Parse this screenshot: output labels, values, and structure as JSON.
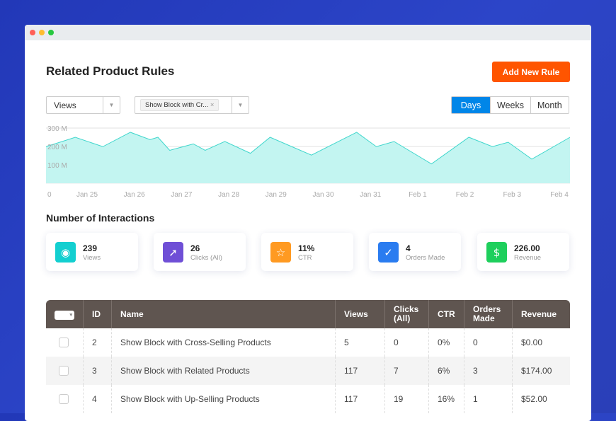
{
  "header": {
    "title": "Related Product Rules",
    "add_button": "Add New Rule"
  },
  "filters": {
    "metric": "Views",
    "rule_chip": "Show Block with Cr...",
    "chip_remove": "×"
  },
  "range": {
    "options": [
      "Days",
      "Weeks",
      "Month"
    ],
    "active": "Days"
  },
  "chart_data": {
    "type": "area",
    "yticks": [
      "100 M",
      "200 M",
      "300 M"
    ],
    "ylim": [
      0,
      300
    ],
    "xticks": [
      "0",
      "Jan 25",
      "Jan 26",
      "Jan 27",
      "Jan 28",
      "Jan 29",
      "Jan 30",
      "Jan 31",
      "Feb 1",
      "Feb 2",
      "Feb 3",
      "Feb 4"
    ],
    "grid": true,
    "color": "#3fd6cc",
    "fill": "#c3f5f1",
    "points": [
      [
        "Jan 24 03:00",
        199
      ],
      [
        "Jan 24 18:00",
        250
      ],
      [
        "Jan 25 08:00",
        199
      ],
      [
        "Jan 25 22:00",
        277
      ],
      [
        "Jan 26 08:00",
        237
      ],
      [
        "Jan 26 12:00",
        250
      ],
      [
        "Jan 26 18:00",
        179
      ],
      [
        "Jan 27 06:00",
        214
      ],
      [
        "Jan 27 12:00",
        179
      ],
      [
        "Jan 27 22:00",
        227
      ],
      [
        "Jan 28 11:00",
        163
      ],
      [
        "Jan 28 21:00",
        250
      ],
      [
        "Jan 29 18:00",
        153
      ],
      [
        "Jan 30 17:00",
        277
      ],
      [
        "Jan 31 03:00",
        199
      ],
      [
        "Jan 31 12:00",
        227
      ],
      [
        "Feb 1 07:00",
        105
      ],
      [
        "Feb 2 02:00",
        250
      ],
      [
        "Feb 2 14:00",
        199
      ],
      [
        "Feb 2 22:00",
        223
      ],
      [
        "Feb 3 10:00",
        131
      ],
      [
        "Feb 4 04:00",
        250
      ]
    ]
  },
  "interactions": {
    "title": "Number of Interactions",
    "cards": [
      {
        "value": "239",
        "label": "Views",
        "icon": "eye-icon",
        "color": "#13cfd0"
      },
      {
        "value": "26",
        "label": "Clicks (All)",
        "icon": "cursor-icon",
        "color": "#6f4fd6"
      },
      {
        "value": "11%",
        "label": "CTR",
        "icon": "star-icon",
        "color": "#ff9a22"
      },
      {
        "value": "4",
        "label": "Orders Made",
        "icon": "check-icon",
        "color": "#2a7cf0"
      },
      {
        "value": "226.00",
        "label": "Revenue",
        "icon": "dollar-icon",
        "color": "#1ecf5c"
      }
    ]
  },
  "table": {
    "columns": [
      "ID",
      "Name",
      "Views",
      "Clicks (All)",
      "CTR",
      "Orders Made",
      "Revenue"
    ],
    "rows": [
      [
        "2",
        "Show Block with Cross-Selling Products",
        "5",
        "0",
        "0%",
        "0",
        "$0.00"
      ],
      [
        "3",
        "Show Block with Related Products",
        "117",
        "7",
        "6%",
        "3",
        "$174.00"
      ],
      [
        "4",
        "Show Block with Up-Selling Products",
        "117",
        "19",
        "16%",
        "1",
        "$52.00"
      ]
    ]
  }
}
